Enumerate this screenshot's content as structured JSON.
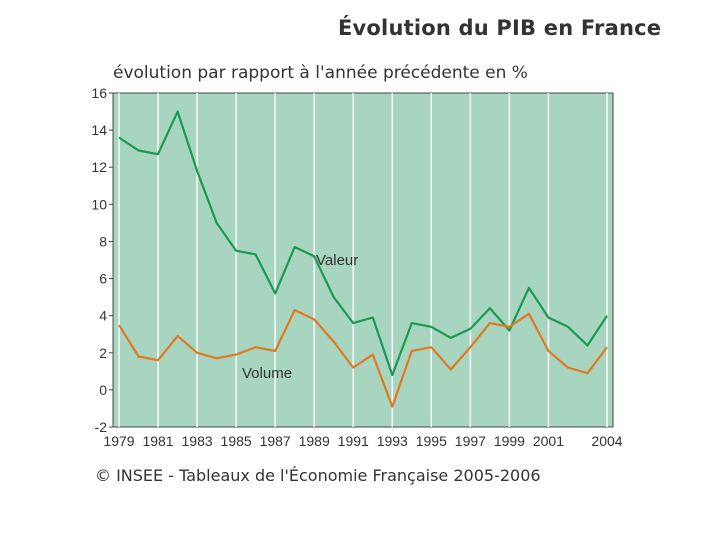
{
  "chart_data": {
    "type": "line",
    "title": "Évolution du PIB en France",
    "subtitle": "évolution par rapport à l'année précédente en %",
    "source": "© INSEE - Tableaux de l'Économie Française 2005-2006",
    "x": [
      1979,
      1980,
      1981,
      1982,
      1983,
      1984,
      1985,
      1986,
      1987,
      1988,
      1989,
      1990,
      1991,
      1992,
      1993,
      1994,
      1995,
      1996,
      1997,
      1998,
      1999,
      2000,
      2001,
      2002,
      2003,
      2004
    ],
    "x_tick_labels": [
      "1979",
      "1981",
      "1983",
      "1985",
      "1987",
      "1989",
      "1991",
      "1993",
      "1995",
      "1997",
      "1999",
      "2001",
      "2004"
    ],
    "x_tick_values": [
      1979,
      1981,
      1983,
      1985,
      1987,
      1989,
      1991,
      1993,
      1995,
      1997,
      1999,
      2001,
      2004
    ],
    "y_tick_labels": [
      "16",
      "14",
      "12",
      "10",
      "8",
      "6",
      "4",
      "2",
      "0",
      "-2"
    ],
    "y_tick_values": [
      16,
      14,
      12,
      10,
      8,
      6,
      4,
      2,
      0,
      -2
    ],
    "ylim": [
      -2,
      16
    ],
    "xlim": [
      1979,
      2004
    ],
    "background_color": "#a8d5c0",
    "series": [
      {
        "name": "Valeur",
        "color": "#1a9a50",
        "values": [
          13.6,
          12.9,
          12.7,
          15.0,
          11.8,
          9.0,
          7.5,
          7.3,
          5.2,
          7.7,
          7.2,
          5.0,
          3.6,
          3.9,
          0.8,
          3.6,
          3.4,
          2.8,
          3.3,
          4.4,
          3.2,
          5.5,
          3.9,
          3.4,
          2.4,
          4.0
        ]
      },
      {
        "name": "Volume",
        "color": "#e07a20",
        "values": [
          3.5,
          1.8,
          1.6,
          2.9,
          2.0,
          1.7,
          1.9,
          2.3,
          2.1,
          4.3,
          3.8,
          2.6,
          1.2,
          1.9,
          -0.9,
          2.1,
          2.3,
          1.1,
          2.3,
          3.6,
          3.4,
          4.1,
          2.1,
          1.2,
          0.9,
          2.3
        ]
      }
    ]
  }
}
